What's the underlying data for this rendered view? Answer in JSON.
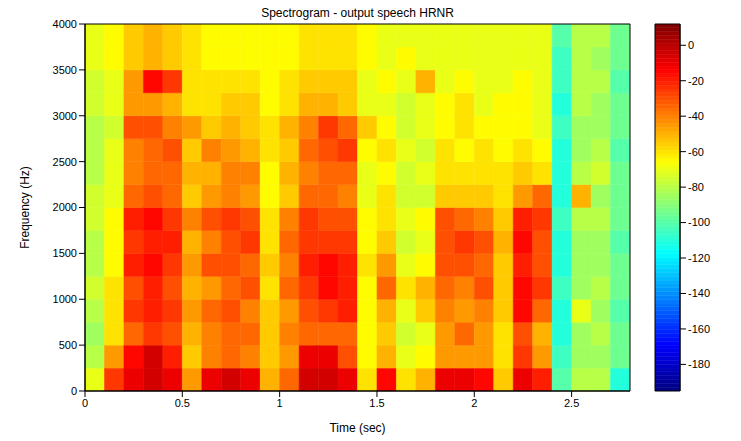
{
  "chart_data": {
    "type": "heatmap",
    "title": "Spectrogram - output speech HRNR",
    "x_label": "Time (sec)",
    "y_label": "Frequency (Hz)",
    "xlim": [
      0,
      2.8
    ],
    "xticks": [
      0,
      0.5,
      1,
      1.5,
      2,
      2.5
    ],
    "ylim": [
      0,
      4000
    ],
    "yticks": [
      0,
      500,
      1000,
      1500,
      2000,
      2500,
      3000,
      3500,
      4000
    ],
    "x_edges": [
      0,
      0.1,
      0.2,
      0.3,
      0.4,
      0.5,
      0.6,
      0.7,
      0.8,
      0.9,
      1.0,
      1.1,
      1.2,
      1.3,
      1.4,
      1.5,
      1.6,
      1.7,
      1.8,
      1.9,
      2.0,
      2.1,
      2.2,
      2.3,
      2.4,
      2.5,
      2.6,
      2.7,
      2.8
    ],
    "y_edges": [
      0,
      250,
      500,
      750,
      1000,
      1250,
      1500,
      1750,
      2000,
      2250,
      2500,
      2750,
      3000,
      3250,
      3500,
      3750,
      4000
    ],
    "cells_by_x": [
      [
        -70,
        -80,
        -85,
        -80,
        -75,
        -80,
        -80,
        -75,
        -75,
        -80,
        -80,
        -80,
        -75,
        -75,
        -70,
        -70
      ],
      [
        -25,
        -45,
        -60,
        -60,
        -60,
        -65,
        -65,
        -65,
        -70,
        -70,
        -70,
        -75,
        -70,
        -70,
        -65,
        -65
      ],
      [
        -10,
        -15,
        -35,
        -25,
        -30,
        -20,
        -25,
        -20,
        -35,
        -40,
        -40,
        -30,
        -45,
        -45,
        -55,
        -55
      ],
      [
        -5,
        -5,
        -25,
        -20,
        -20,
        -15,
        -20,
        -15,
        -30,
        -35,
        -35,
        -30,
        -45,
        -15,
        -50,
        -50
      ],
      [
        -10,
        -20,
        -30,
        -25,
        -30,
        -25,
        -20,
        -25,
        -35,
        -35,
        -30,
        -40,
        -50,
        -25,
        -55,
        -55
      ],
      [
        -45,
        -55,
        -50,
        -45,
        -50,
        -45,
        -50,
        -40,
        -55,
        -50,
        -55,
        -45,
        -60,
        -60,
        -60,
        -60
      ],
      [
        -10,
        -40,
        -40,
        -35,
        -45,
        -30,
        -40,
        -30,
        -45,
        -50,
        -40,
        -55,
        -60,
        -60,
        -65,
        -65
      ],
      [
        -5,
        -35,
        -35,
        -30,
        -35,
        -30,
        -30,
        -25,
        -40,
        -40,
        -45,
        -50,
        -55,
        -60,
        -65,
        -65
      ],
      [
        -10,
        -40,
        -35,
        -40,
        -30,
        -35,
        -25,
        -30,
        -45,
        -40,
        -50,
        -55,
        -55,
        -60,
        -65,
        -65
      ],
      [
        -50,
        -55,
        -55,
        -55,
        -60,
        -55,
        -60,
        -60,
        -65,
        -65,
        -60,
        -60,
        -65,
        -65,
        -65,
        -65
      ],
      [
        -35,
        -45,
        -40,
        -45,
        -35,
        -40,
        -35,
        -40,
        -55,
        -50,
        -55,
        -50,
        -60,
        -60,
        -65,
        -65
      ],
      [
        -5,
        -10,
        -35,
        -30,
        -25,
        -20,
        -25,
        -25,
        -35,
        -40,
        -35,
        -40,
        -50,
        -55,
        -60,
        -60
      ],
      [
        -5,
        -10,
        -35,
        -25,
        -15,
        -15,
        -25,
        -30,
        -35,
        -35,
        -30,
        -25,
        -50,
        -55,
        -60,
        -60
      ],
      [
        -10,
        -30,
        -35,
        -20,
        -20,
        -20,
        -25,
        -30,
        -40,
        -35,
        -25,
        -35,
        -55,
        -55,
        -60,
        -60
      ],
      [
        -60,
        -65,
        -65,
        -65,
        -65,
        -60,
        -65,
        -65,
        -70,
        -70,
        -65,
        -55,
        -70,
        -70,
        -65,
        -65
      ],
      [
        -15,
        -50,
        -55,
        -50,
        -35,
        -45,
        -55,
        -60,
        -60,
        -65,
        -60,
        -65,
        -70,
        -65,
        -70,
        -70
      ],
      [
        -60,
        -70,
        -75,
        -70,
        -60,
        -70,
        -75,
        -70,
        -75,
        -75,
        -70,
        -75,
        -75,
        -70,
        -65,
        -70
      ],
      [
        -50,
        -65,
        -70,
        -55,
        -50,
        -65,
        -70,
        -65,
        -75,
        -70,
        -75,
        -70,
        -70,
        -50,
        -70,
        -70
      ],
      [
        -10,
        -45,
        -45,
        -40,
        -35,
        -30,
        -30,
        -30,
        -55,
        -60,
        -60,
        -65,
        -65,
        -70,
        -70,
        -70
      ],
      [
        -10,
        -45,
        -35,
        -45,
        -40,
        -30,
        -25,
        -35,
        -55,
        -60,
        -65,
        -60,
        -60,
        -65,
        -70,
        -70
      ],
      [
        -15,
        -45,
        -45,
        -40,
        -30,
        -35,
        -30,
        -40,
        -55,
        -60,
        -60,
        -65,
        -70,
        -70,
        -70,
        -70
      ],
      [
        -55,
        -60,
        -60,
        -55,
        -55,
        -55,
        -50,
        -55,
        -60,
        -60,
        -65,
        -65,
        -65,
        -70,
        -70,
        -70
      ],
      [
        -10,
        -25,
        -30,
        -15,
        -15,
        -20,
        -15,
        -20,
        -45,
        -55,
        -60,
        -65,
        -65,
        -65,
        -70,
        -70
      ],
      [
        -20,
        -45,
        -50,
        -35,
        -25,
        -30,
        -30,
        -25,
        -35,
        -60,
        -65,
        -70,
        -70,
        -70,
        -70,
        -70
      ],
      [
        -100,
        -105,
        -110,
        -110,
        -105,
        -110,
        -110,
        -105,
        -110,
        -110,
        -110,
        -105,
        -110,
        -105,
        -105,
        -100
      ],
      [
        -80,
        -85,
        -85,
        -70,
        -85,
        -85,
        -85,
        -80,
        -50,
        -80,
        -85,
        -85,
        -80,
        -80,
        -80,
        -80
      ],
      [
        -80,
        -85,
        -80,
        -85,
        -80,
        -85,
        -85,
        -80,
        -85,
        -75,
        -80,
        -85,
        -85,
        -80,
        -85,
        -80
      ],
      [
        -110,
        -95,
        -95,
        -100,
        -95,
        -95,
        -100,
        -95,
        -95,
        -95,
        -100,
        -95,
        -95,
        -100,
        -95,
        -95
      ]
    ],
    "colorbar_lim": [
      -195,
      12
    ],
    "colorbar_ticks": [
      0,
      -20,
      -40,
      -60,
      -80,
      -100,
      -120,
      -140,
      -160,
      -180
    ]
  }
}
